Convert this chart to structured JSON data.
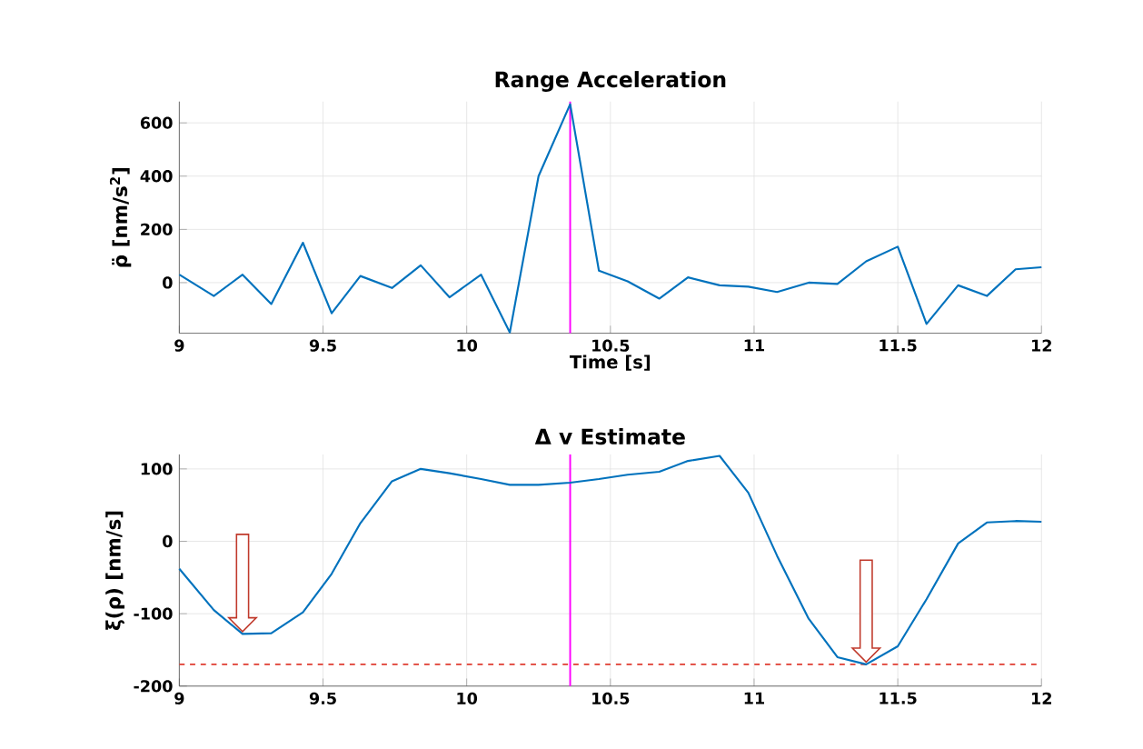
{
  "chart_data": [
    {
      "type": "line",
      "title": "Range Acceleration",
      "xlabel": "Time [s]",
      "ylabel": "ρ̈ [nm/s$^{2}$]",
      "x": [
        9,
        9.12,
        9.22,
        9.32,
        9.43,
        9.53,
        9.63,
        9.74,
        9.84,
        9.94,
        10.05,
        10.15,
        10.25,
        10.36,
        10.46,
        10.56,
        10.67,
        10.77,
        10.88,
        10.98,
        11.08,
        11.19,
        11.29,
        11.39,
        11.5,
        11.6,
        11.71,
        11.81,
        11.91,
        12
      ],
      "series": [
        {
          "color": "#0072bd",
          "values": [
            30,
            -50,
            30,
            -80,
            150,
            -115,
            25,
            -20,
            65,
            -55,
            30,
            -187,
            400,
            670,
            45,
            5,
            -60,
            20,
            -10,
            -15,
            -35,
            0,
            -5,
            80,
            135,
            -155,
            -10,
            -50,
            50,
            58
          ]
        }
      ],
      "xlim": [
        9,
        12
      ],
      "ylim": [
        -190,
        680
      ],
      "xticks": [
        9,
        9.5,
        10,
        10.5,
        11,
        11.5,
        12
      ],
      "yticks": [
        0,
        200,
        400,
        600
      ],
      "grid": true,
      "ref_lines": [
        {
          "axis": "x",
          "value": 10.36,
          "color": "#ff00ff",
          "line_style": "solid"
        }
      ]
    },
    {
      "type": "line",
      "title": "Δ v  Estimate",
      "ylabel": "ξ(ρ) [nm/s]",
      "x": [
        9,
        9.12,
        9.22,
        9.32,
        9.43,
        9.53,
        9.63,
        9.74,
        9.84,
        9.94,
        10.05,
        10.15,
        10.25,
        10.36,
        10.46,
        10.56,
        10.67,
        10.77,
        10.88,
        10.98,
        11.08,
        11.19,
        11.29,
        11.39,
        11.5,
        11.6,
        11.71,
        11.81,
        11.91,
        12
      ],
      "series": [
        {
          "color": "#0072bd",
          "values": [
            -38,
            -95,
            -128,
            -127,
            -98,
            -45,
            25,
            83,
            100,
            94,
            86,
            78,
            78,
            81,
            86,
            92,
            96,
            111,
            118,
            67,
            -20,
            -107,
            -160,
            -170,
            -145,
            -80,
            -3,
            26,
            28,
            27
          ]
        }
      ],
      "xlim": [
        9,
        12
      ],
      "ylim": [
        -200,
        120
      ],
      "xticks": [
        9,
        9.5,
        10,
        10.5,
        11,
        11.5,
        12
      ],
      "yticks": [
        -200,
        -100,
        0,
        100
      ],
      "grid": true,
      "ref_lines": [
        {
          "axis": "x",
          "value": 10.36,
          "color": "#ff00ff",
          "line_style": "solid"
        },
        {
          "axis": "y",
          "value": -170,
          "color": "#e03c31",
          "line_style": "dashed"
        }
      ]
    }
  ]
}
